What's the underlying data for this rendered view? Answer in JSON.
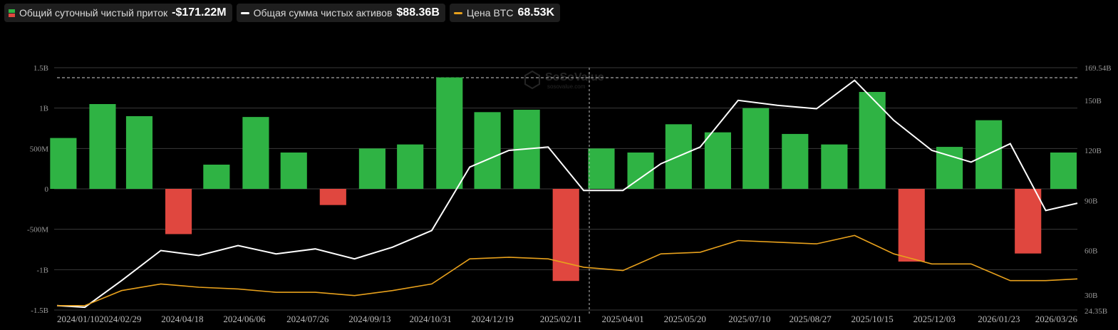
{
  "legend": [
    {
      "label": "Общий суточный чистый приток",
      "value": "-$171.22M",
      "kind": "flow"
    },
    {
      "label": "Общая сумма чистых активов",
      "value": "$88.36B",
      "kind": "line",
      "color": "#ffffff"
    },
    {
      "label": "Цена BTC",
      "value": "68.53K",
      "kind": "line",
      "color": "#e8a11c"
    }
  ],
  "watermark": {
    "brand": "SoSoValue",
    "site": "sosovalue.com"
  },
  "chart_data": {
    "type": "bar",
    "title": "",
    "colors": {
      "inflow": "#2fb344",
      "outflow": "#e0473f",
      "assets": "#ffffff",
      "btc": "#e8a11c"
    },
    "x_ticks": [
      "2024/01/10",
      "2024/02/29",
      "2024/04/18",
      "2024/06/06",
      "2024/07/26",
      "2024/09/13",
      "2024/10/31",
      "2024/12/19",
      "2025/02/11",
      "2025/04/01",
      "2025/05/20",
      "2025/07/10",
      "2025/08/27",
      "2025/10/15",
      "2025/12/03",
      "2026/01/23",
      "2026/03/26"
    ],
    "left_axis": {
      "ticks": [
        "1.5B",
        "1B",
        "500M",
        "0",
        "-500M",
        "-1B",
        "-1.5B"
      ],
      "ylim": [
        -1.5,
        1.5
      ],
      "unit": "B"
    },
    "right_axis": {
      "ticks": [
        "169.54B",
        "150B",
        "120B",
        "90B",
        "60B",
        "30B",
        "24.35B"
      ],
      "ylim": [
        24.35,
        169.54
      ],
      "max_line": "169.54B"
    },
    "series": [
      {
        "name": "Общий суточный чистый приток",
        "type": "bar",
        "dates": [
          "2024/01",
          "2024/02",
          "2024/03",
          "2024/04",
          "2024/05",
          "2024/06",
          "2024/07",
          "2024/08",
          "2024/09",
          "2024/10",
          "2024/11",
          "2024/12",
          "2025/01",
          "2025/02",
          "2025/03",
          "2025/04",
          "2025/05",
          "2025/06",
          "2025/07",
          "2025/08",
          "2025/09",
          "2025/10",
          "2025/11",
          "2025/12",
          "2026/01",
          "2026/02",
          "2026/03"
        ],
        "values": [
          0.63,
          1.05,
          0.9,
          -0.56,
          0.3,
          0.89,
          0.45,
          -0.2,
          0.5,
          0.55,
          1.38,
          0.95,
          0.98,
          -1.14,
          0.5,
          0.45,
          0.8,
          0.7,
          1.0,
          0.68,
          0.55,
          1.2,
          -0.9,
          0.52,
          0.85,
          -0.8,
          0.45
        ]
      },
      {
        "name": "Общая сумма чистых активов",
        "type": "line",
        "dates": [
          "2024/01/10",
          "2024/02/01",
          "2024/03/01",
          "2024/04/01",
          "2024/05/01",
          "2024/06/01",
          "2024/07/01",
          "2024/08/01",
          "2024/09/01",
          "2024/10/01",
          "2024/11/01",
          "2024/12/01",
          "2025/01/01",
          "2025/02/01",
          "2025/03/01",
          "2025/04/01",
          "2025/05/01",
          "2025/06/01",
          "2025/07/01",
          "2025/08/01",
          "2025/09/01",
          "2025/10/01",
          "2025/11/01",
          "2025/12/01",
          "2026/01/01",
          "2026/02/01",
          "2026/03/01",
          "2026/03/26"
        ],
        "values": [
          27,
          26,
          42,
          60,
          57,
          63,
          58,
          61,
          55,
          62,
          72,
          110,
          120,
          122,
          96,
          96,
          112,
          122,
          150,
          147,
          145,
          162,
          138,
          120,
          113,
          124,
          84,
          88.36
        ]
      },
      {
        "name": "Цена BTC",
        "type": "line",
        "dates": [
          "2024/01/10",
          "2024/02/01",
          "2024/03/01",
          "2024/04/01",
          "2024/05/01",
          "2024/06/01",
          "2024/07/01",
          "2024/08/01",
          "2024/09/01",
          "2024/10/01",
          "2024/11/01",
          "2024/12/01",
          "2025/01/01",
          "2025/02/01",
          "2025/03/01",
          "2025/04/01",
          "2025/05/01",
          "2025/06/01",
          "2025/07/01",
          "2025/08/01",
          "2025/09/01",
          "2025/10/01",
          "2025/11/01",
          "2025/12/01",
          "2026/01/01",
          "2026/02/01",
          "2026/03/01",
          "2026/03/26"
        ],
        "values": [
          27,
          27,
          36,
          40,
          38,
          37,
          35,
          35,
          33,
          36,
          40,
          55,
          56,
          55,
          50,
          48,
          58,
          59,
          66,
          65,
          64,
          69,
          58,
          52,
          52,
          42,
          42,
          43
        ]
      }
    ]
  }
}
